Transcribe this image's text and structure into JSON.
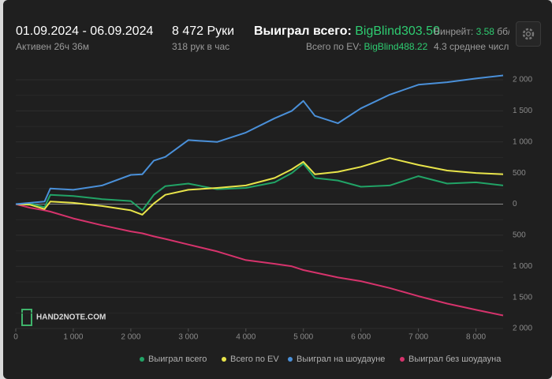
{
  "header": {
    "date_range": "01.09.2024 - 06.09.2024",
    "active": "Активен 26ч 36м",
    "hands": "8 472 Руки",
    "hands_per_hour": "318 рук в час",
    "won_label": "Выиграл всего:",
    "won_value": "BigBlind303.50",
    "ev_label": "Всего по EV:",
    "ev_value": "BigBlind488.22",
    "winrate_label": "Винрейт:",
    "winrate_value": "3.58",
    "winrate_unit": "бб/",
    "avg_text": "4.3 среднее числ"
  },
  "chart_data": {
    "type": "line",
    "watermark": "HAND2NOTE.COM",
    "x": [
      0,
      250,
      500,
      600,
      1000,
      1500,
      2000,
      2200,
      2400,
      2600,
      3000,
      3500,
      4000,
      4500,
      4800,
      5000,
      5200,
      5600,
      6000,
      6500,
      7000,
      7500,
      8000,
      8472
    ],
    "series": [
      {
        "name": "Выиграл всего",
        "color": "#21a366",
        "values": [
          0,
          10,
          -50,
          150,
          130,
          80,
          50,
          -100,
          150,
          290,
          330,
          240,
          260,
          350,
          500,
          650,
          420,
          380,
          280,
          300,
          450,
          330,
          350,
          300
        ]
      },
      {
        "name": "Всего по EV",
        "color": "#e8e44a",
        "values": [
          0,
          -10,
          -80,
          40,
          20,
          -30,
          -100,
          -170,
          10,
          150,
          230,
          260,
          300,
          420,
          560,
          680,
          480,
          520,
          600,
          740,
          630,
          540,
          500,
          480
        ]
      },
      {
        "name": "Выиграл на шоудауне",
        "color": "#4a90d9",
        "values": [
          0,
          20,
          40,
          250,
          230,
          300,
          470,
          480,
          700,
          760,
          1030,
          1000,
          1150,
          1380,
          1500,
          1660,
          1420,
          1300,
          1540,
          1760,
          1920,
          1960,
          2020,
          2070
        ]
      },
      {
        "name": "Выиграл без шоудауна",
        "color": "#d6336c",
        "values": [
          0,
          -60,
          -100,
          -120,
          -230,
          -340,
          -440,
          -470,
          -520,
          -560,
          -650,
          -760,
          -900,
          -960,
          -1000,
          -1060,
          -1100,
          -1180,
          -1240,
          -1350,
          -1480,
          -1600,
          -1700,
          -1790
        ]
      }
    ],
    "xlim": [
      0,
      8472
    ],
    "xticks": [
      0,
      {
        "value": 1000,
        "label": "1 000"
      },
      {
        "value": 2000,
        "label": "2 000"
      },
      {
        "value": 3000,
        "label": "3 000"
      },
      {
        "value": 4000,
        "label": "4 000"
      },
      {
        "value": 5000,
        "label": "5 000"
      },
      {
        "value": 6000,
        "label": "6 000"
      },
      {
        "value": 7000,
        "label": "7 000"
      },
      {
        "value": 8000,
        "label": "8 000"
      }
    ],
    "ylim": [
      -2000,
      2000
    ],
    "yticks": [
      {
        "value": -2000,
        "label": "2 000"
      },
      {
        "value": -1500,
        "label": "1 500"
      },
      {
        "value": -1000,
        "label": "1 000"
      },
      {
        "value": -500,
        "label": "500"
      },
      0,
      500,
      {
        "value": 1000,
        "label": "1 000"
      },
      {
        "value": 1500,
        "label": "1 500"
      },
      {
        "value": 2000,
        "label": "2 000"
      }
    ],
    "grid": true
  }
}
